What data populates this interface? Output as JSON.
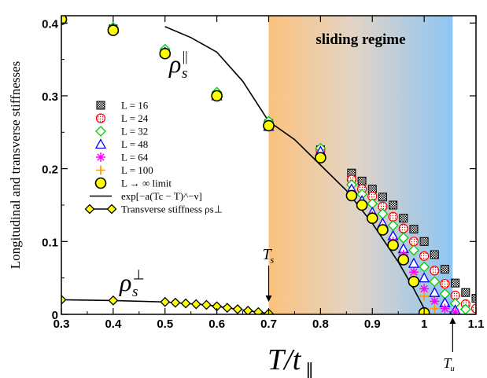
{
  "chart_data": {
    "type": "scatter",
    "xlabel": "T/t∥",
    "ylabel": "Longitudinal and transverse stiffnesses",
    "xlim": [
      0.3,
      1.1
    ],
    "ylim": [
      0,
      0.41
    ],
    "x_ticks": [
      "0.3",
      "0.4",
      "0.5",
      "0.6",
      "0.7",
      "0.8",
      "0.9",
      "1",
      "1.1"
    ],
    "y_ticks": [
      "0",
      "0.1",
      "0.2",
      "0.3",
      "0.4"
    ],
    "regime": {
      "label": "sliding regime",
      "x_start": 0.7,
      "x_end": 1.055
    },
    "annotations": {
      "rho_par_base": "ρ",
      "rho_par_sub": "s",
      "rho_par_sup": "||",
      "rho_perp_base": "ρ",
      "rho_perp_sub": "s",
      "rho_perp_sup": "⊥",
      "Ts_base": "T",
      "Ts_sub": "s",
      "Ts_x": 0.7,
      "Tu_base": "T",
      "Tu_sub": "u",
      "Tu_x": 1.055
    },
    "legend": [
      {
        "key": "L16",
        "label": "L = 16"
      },
      {
        "key": "L24",
        "label": "L = 24"
      },
      {
        "key": "L32",
        "label": "L = 32"
      },
      {
        "key": "L48",
        "label": "L = 48"
      },
      {
        "key": "L64",
        "label": "L = 64"
      },
      {
        "key": "L100",
        "label": "L = 100"
      },
      {
        "key": "Linf",
        "label": "L → ∞ limit"
      },
      {
        "key": "fit",
        "label": "exp[−a(Tc − T)^−ν]"
      },
      {
        "key": "trans",
        "label": "Transverse stiffness ρs⊥"
      }
    ],
    "series": [
      {
        "name": "L = 16",
        "key": "L16",
        "color": "#000000",
        "x": [
          0.3,
          0.4,
          0.5,
          0.6,
          0.7,
          0.8,
          0.86,
          0.88,
          0.9,
          0.92,
          0.94,
          0.96,
          0.98,
          1.0,
          1.02,
          1.04,
          1.06,
          1.08,
          1.1
        ],
        "y": [
          0.405,
          0.392,
          0.36,
          0.3,
          0.262,
          0.226,
          0.194,
          0.183,
          0.172,
          0.161,
          0.15,
          0.132,
          0.117,
          0.1,
          0.082,
          0.062,
          0.043,
          0.03,
          0.022
        ]
      },
      {
        "name": "L = 24",
        "key": "L24",
        "color": "#ff0000",
        "x": [
          0.3,
          0.4,
          0.5,
          0.6,
          0.7,
          0.8,
          0.86,
          0.88,
          0.9,
          0.92,
          0.94,
          0.96,
          0.98,
          1.0,
          1.02,
          1.04,
          1.06,
          1.08,
          1.1
        ],
        "y": [
          0.405,
          0.392,
          0.36,
          0.3,
          0.26,
          0.225,
          0.185,
          0.172,
          0.162,
          0.148,
          0.134,
          0.118,
          0.1,
          0.08,
          0.06,
          0.042,
          0.026,
          0.014,
          0.008
        ]
      },
      {
        "name": "L = 32",
        "key": "L32",
        "color": "#00cc00",
        "x": [
          0.3,
          0.4,
          0.5,
          0.6,
          0.7,
          0.8,
          0.86,
          0.88,
          0.9,
          0.92,
          0.94,
          0.96,
          0.98,
          1.0,
          1.02,
          1.04,
          1.06,
          1.08
        ],
        "y": [
          0.406,
          0.394,
          0.364,
          0.305,
          0.265,
          0.228,
          0.178,
          0.165,
          0.152,
          0.138,
          0.122,
          0.105,
          0.088,
          0.065,
          0.045,
          0.028,
          0.015,
          0.007
        ]
      },
      {
        "name": "L = 48",
        "key": "L48",
        "color": "#0000ff",
        "x": [
          0.3,
          0.4,
          0.5,
          0.6,
          0.7,
          0.8,
          0.86,
          0.88,
          0.9,
          0.92,
          0.94,
          0.96,
          0.98,
          1.0,
          1.02,
          1.04,
          1.06
        ],
        "y": [
          0.405,
          0.392,
          0.36,
          0.3,
          0.258,
          0.224,
          0.172,
          0.156,
          0.14,
          0.125,
          0.108,
          0.09,
          0.07,
          0.05,
          0.03,
          0.016,
          0.006
        ]
      },
      {
        "name": "L = 64",
        "key": "L64",
        "color": "#ff00ff",
        "x": [
          0.9,
          0.92,
          0.94,
          0.96,
          0.98,
          1.0,
          1.02,
          1.04,
          1.06
        ],
        "y": [
          0.135,
          0.118,
          0.1,
          0.082,
          0.058,
          0.035,
          0.018,
          0.008,
          0.003
        ]
      },
      {
        "name": "L = 100",
        "key": "L100",
        "color": "#ff9900",
        "x": [
          0.96,
          0.98,
          1.0,
          1.02
        ],
        "y": [
          0.075,
          0.05,
          0.025,
          0.008
        ]
      },
      {
        "name": "L → ∞ limit",
        "key": "Linf",
        "color": "#ffff00",
        "x": [
          0.3,
          0.4,
          0.5,
          0.6,
          0.7,
          0.8,
          0.86,
          0.88,
          0.9,
          0.92,
          0.94,
          0.96,
          0.98,
          1.0
        ],
        "y": [
          0.405,
          0.39,
          0.358,
          0.3,
          0.259,
          0.215,
          0.163,
          0.15,
          0.132,
          0.116,
          0.095,
          0.075,
          0.045,
          0.002
        ]
      },
      {
        "name": "Transverse stiffness ρs⊥",
        "key": "trans",
        "color": "#ffff00",
        "x": [
          0.3,
          0.4,
          0.5,
          0.52,
          0.54,
          0.56,
          0.58,
          0.6,
          0.62,
          0.64,
          0.66,
          0.68,
          0.7
        ],
        "y": [
          0.02,
          0.019,
          0.017,
          0.016,
          0.015,
          0.014,
          0.013,
          0.011,
          0.009,
          0.007,
          0.005,
          0.003,
          0.001
        ]
      }
    ],
    "fit_curve": {
      "name": "exp[−a(Tc − T)^−ν]",
      "x": [
        0.5,
        0.55,
        0.6,
        0.65,
        0.7,
        0.75,
        0.8,
        0.85,
        0.9,
        0.95,
        0.98,
        1.0
      ],
      "y": [
        0.395,
        0.38,
        0.36,
        0.32,
        0.265,
        0.24,
        0.205,
        0.17,
        0.125,
        0.072,
        0.035,
        0.008
      ]
    }
  }
}
